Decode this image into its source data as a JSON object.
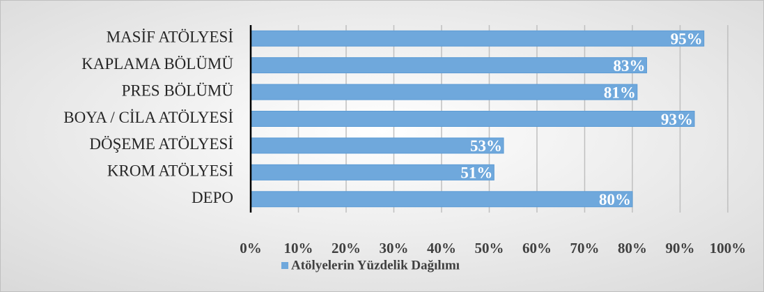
{
  "chart_data": {
    "type": "barh",
    "categories": [
      "MASİF ATÖLYESİ",
      "KAPLAMA BÖLÜMÜ",
      "PRES BÖLÜMÜ",
      "BOYA / CİLA ATÖLYESİ",
      "DÖŞEME ATÖLYESİ",
      "KROM ATÖLYESİ",
      "DEPO"
    ],
    "series": [
      {
        "name": "Atölyelerin Yüzdelik Dağılımı",
        "color": "#6fa8dc",
        "values": [
          95,
          83,
          81,
          93,
          53,
          51,
          80
        ],
        "value_labels": [
          "95%",
          "83%",
          "81%",
          "93%",
          "53%",
          "51%",
          "80%"
        ]
      }
    ],
    "xlim": [
      0,
      100
    ],
    "xticks": [
      {
        "value": 0,
        "label": "0%"
      },
      {
        "value": 10,
        "label": "10%"
      },
      {
        "value": 20,
        "label": "20%"
      },
      {
        "value": 30,
        "label": "30%"
      },
      {
        "value": 40,
        "label": "40%"
      },
      {
        "value": 50,
        "label": "50%"
      },
      {
        "value": 60,
        "label": "60%"
      },
      {
        "value": 70,
        "label": "70%"
      },
      {
        "value": 80,
        "label": "80%"
      },
      {
        "value": 90,
        "label": "90%"
      },
      {
        "value": 100,
        "label": "100%"
      }
    ],
    "grid": true,
    "legend": "bottom"
  }
}
